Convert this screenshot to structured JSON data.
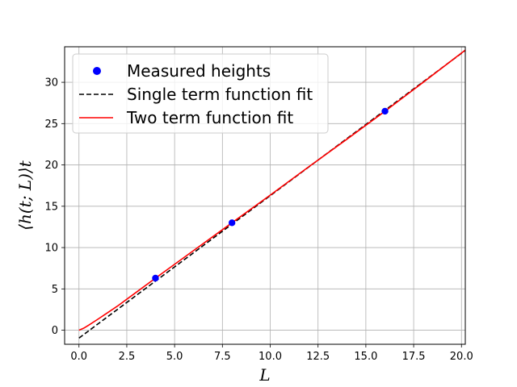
{
  "chart_data": {
    "type": "line",
    "xlabel": "L",
    "ylabel": "⟨h(t; L)⟩t",
    "xlim": [
      -0.75,
      20.2
    ],
    "ylim": [
      -1.7,
      34.3
    ],
    "x_ticks": [
      "0.0",
      "2.5",
      "5.0",
      "7.5",
      "10.0",
      "12.5",
      "15.0",
      "17.5",
      "20.0"
    ],
    "x_tick_values": [
      0,
      2.5,
      5,
      7.5,
      10,
      12.5,
      15,
      17.5,
      20
    ],
    "y_ticks": [
      "0",
      "5",
      "10",
      "15",
      "20",
      "25",
      "30"
    ],
    "y_tick_values": [
      0,
      5,
      10,
      15,
      20,
      25,
      30
    ],
    "grid": true,
    "legend_position": "upper-left",
    "legend": [
      "Measured heights",
      "Single term function fit",
      "Two term function fit"
    ],
    "series": [
      {
        "name": "Measured heights",
        "kind": "scatter",
        "color": "#0000ff",
        "x": [
          4,
          8,
          16
        ],
        "y": [
          6.3,
          13.0,
          26.5
        ]
      },
      {
        "name": "Single term function fit",
        "kind": "line",
        "style": "dashed",
        "color": "#000000",
        "slope": 1.723,
        "intercept": -0.95,
        "x_range": [
          0,
          20.2
        ]
      },
      {
        "name": "Two term function fit",
        "kind": "line",
        "style": "solid",
        "color": "#ff0000",
        "x": [
          0,
          0.25,
          0.5,
          1,
          2,
          3,
          4,
          6,
          8,
          10,
          12,
          14,
          16,
          18,
          20.2
        ],
        "y": [
          0,
          0.25,
          0.6,
          1.35,
          2.9,
          4.6,
          6.3,
          9.65,
          13.0,
          16.35,
          19.75,
          23.1,
          26.5,
          30.0,
          33.9
        ]
      }
    ]
  }
}
